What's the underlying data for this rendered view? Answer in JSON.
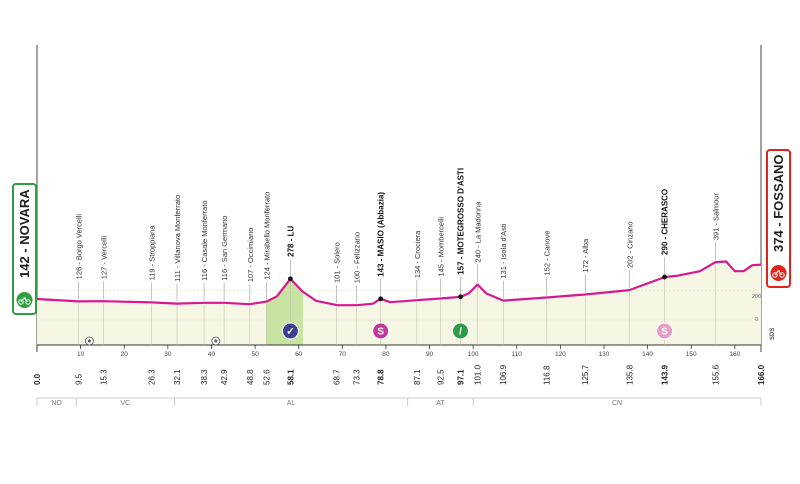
{
  "start": {
    "label": "142 - NOVARA",
    "color": "#2f9e3e",
    "icon": "bicycle-icon"
  },
  "finish": {
    "label": "374 - FOSSANO",
    "color": "#e2231a",
    "icon": "bicycle-icon"
  },
  "side_label": "SDS",
  "altitude_labels": [
    "200",
    "0"
  ],
  "axis": {
    "max_km": 166.0,
    "ticks": [
      0,
      10,
      20,
      30,
      40,
      50,
      60,
      70,
      80,
      90,
      100,
      110,
      120,
      130,
      140,
      150,
      160
    ],
    "tick_labels": [
      "0",
      "10",
      "20",
      "30",
      "40",
      "50",
      "60",
      "70",
      "80",
      "90",
      "100",
      "110",
      "120",
      "130",
      "140",
      "150",
      "160"
    ]
  },
  "waypoints": [
    {
      "km": 0.0,
      "km_label": "0.0",
      "name": "",
      "bold": true
    },
    {
      "km": 9.5,
      "km_label": "9.5",
      "name": "126 - Borgo Vercelli",
      "bold": false
    },
    {
      "km": 15.3,
      "km_label": "15.3",
      "name": "127 - Vercelli",
      "bold": false
    },
    {
      "km": 26.3,
      "km_label": "26.3",
      "name": "119 - Stroppiana",
      "bold": false
    },
    {
      "km": 32.1,
      "km_label": "32.1",
      "name": "111 - Villanova Monferrato",
      "bold": false
    },
    {
      "km": 38.3,
      "km_label": "38.3",
      "name": "116 - Casale Monferrato",
      "bold": false
    },
    {
      "km": 42.9,
      "km_label": "42.9",
      "name": "116 - San Germano",
      "bold": false
    },
    {
      "km": 48.8,
      "km_label": "48.8",
      "name": "107 - Occimiano",
      "bold": false
    },
    {
      "km": 52.6,
      "km_label": "52.6",
      "name": "124 - Mirabello Monferrato",
      "bold": false
    },
    {
      "km": 58.1,
      "km_label": "58.1",
      "name": "278 - LU",
      "bold": true
    },
    {
      "km": 68.7,
      "km_label": "68.7",
      "name": "101 - Solero",
      "bold": false
    },
    {
      "km": 73.3,
      "km_label": "73.3",
      "name": "100 - Felizzano",
      "bold": false
    },
    {
      "km": 78.8,
      "km_label": "78.8",
      "name": "143 - MASIO (Abbazia)",
      "bold": true
    },
    {
      "km": 87.1,
      "km_label": "87.1",
      "name": "134 - Crociera",
      "bold": false
    },
    {
      "km": 92.5,
      "km_label": "92.5",
      "name": "145 - Mombercelli",
      "bold": false
    },
    {
      "km": 97.1,
      "km_label": "97.1",
      "name": "157 - MOTEGROSSO D'ASTI",
      "bold": true
    },
    {
      "km": 101.0,
      "km_label": "101.0",
      "name": "240 - La Madonna",
      "bold": false
    },
    {
      "km": 106.9,
      "km_label": "106.9",
      "name": "131 - Isola d'Asti",
      "bold": false
    },
    {
      "km": 116.8,
      "km_label": "116.8",
      "name": "152 - Canove",
      "bold": false
    },
    {
      "km": 125.7,
      "km_label": "125.7",
      "name": "172 - Alba",
      "bold": false
    },
    {
      "km": 135.8,
      "km_label": "135.8",
      "name": "202 - Cinzano",
      "bold": false
    },
    {
      "km": 143.9,
      "km_label": "143.9",
      "name": "290 - CHERASCO",
      "bold": true
    },
    {
      "km": 155.6,
      "km_label": "155.6",
      "name": "391 - Salmour",
      "bold": false
    },
    {
      "km": 166.0,
      "km_label": "166.0",
      "name": "",
      "bold": true
    }
  ],
  "markers": [
    {
      "km": 58.1,
      "type": "climb",
      "icon": "climb-icon",
      "color": "#3b3f8f",
      "glyph": "✓"
    },
    {
      "km": 78.8,
      "type": "sprint",
      "icon": "sprint-icon",
      "color": "#c2389a",
      "glyph": "S"
    },
    {
      "km": 97.1,
      "type": "intermediate",
      "icon": "intermediate-icon",
      "color": "#2e9b47",
      "glyph": "/"
    },
    {
      "km": 143.9,
      "type": "sprint",
      "icon": "sprint-icon",
      "color": "#e79bc6",
      "glyph": "S"
    }
  ],
  "small_markers": [
    {
      "km": 12,
      "icon": "feed-zone-icon"
    },
    {
      "km": 41,
      "icon": "tech-zone-icon"
    }
  ],
  "regions": [
    {
      "label": "NO",
      "from": 0,
      "to": 9
    },
    {
      "label": "VC",
      "from": 9,
      "to": 31.5
    },
    {
      "label": "AL",
      "from": 31.5,
      "to": 85
    },
    {
      "label": "AT",
      "from": 85,
      "to": 100
    },
    {
      "label": "CN",
      "from": 100,
      "to": 166
    }
  ],
  "profile": {
    "line_color": "#d6198f",
    "fill_color": "#f5f7e4",
    "climb_fill": "#c7e3a1",
    "points": [
      [
        0,
        142
      ],
      [
        9.5,
        126
      ],
      [
        15.3,
        127
      ],
      [
        26.3,
        119
      ],
      [
        32.1,
        111
      ],
      [
        38.3,
        116
      ],
      [
        42.9,
        116
      ],
      [
        48.8,
        107
      ],
      [
        52.6,
        124
      ],
      [
        55,
        160
      ],
      [
        58.1,
        278
      ],
      [
        61,
        190
      ],
      [
        64,
        130
      ],
      [
        68.7,
        101
      ],
      [
        73.3,
        100
      ],
      [
        77,
        110
      ],
      [
        78.8,
        143
      ],
      [
        81,
        120
      ],
      [
        87.1,
        134
      ],
      [
        92.5,
        145
      ],
      [
        97.1,
        157
      ],
      [
        99,
        180
      ],
      [
        101,
        240
      ],
      [
        103,
        180
      ],
      [
        106.9,
        131
      ],
      [
        116.8,
        152
      ],
      [
        125.7,
        172
      ],
      [
        135.8,
        202
      ],
      [
        143.9,
        290
      ],
      [
        147,
        300
      ],
      [
        152,
        330
      ],
      [
        155.6,
        391
      ],
      [
        158,
        395
      ],
      [
        160,
        330
      ],
      [
        162,
        330
      ],
      [
        164,
        370
      ],
      [
        166,
        374
      ]
    ]
  }
}
